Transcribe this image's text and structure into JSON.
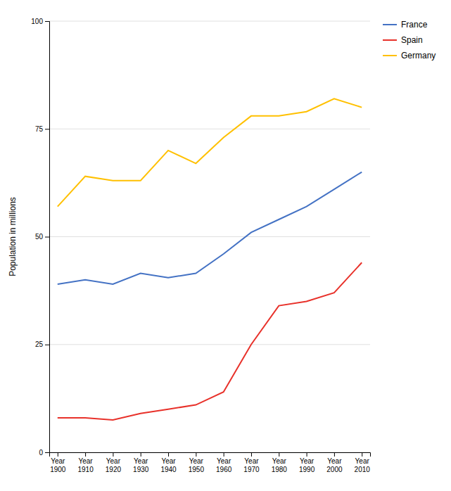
{
  "chart_data": {
    "type": "line",
    "categories": [
      "Year\n1900",
      "Year\n1910",
      "Year\n1920",
      "Year\n1930",
      "Year\n1940",
      "Year\n1950",
      "Year\n1960",
      "Year\n1970",
      "Year\n1980",
      "Year\n1990",
      "Year\n2000",
      "Year\n2010"
    ],
    "series": [
      {
        "name": "France",
        "color": "#4472C4",
        "values": [
          39,
          40,
          39,
          41.5,
          40.5,
          41.5,
          46,
          51,
          54,
          57,
          61,
          65
        ]
      },
      {
        "name": "Spain",
        "color": "#E8312A",
        "values": [
          8,
          8,
          7.5,
          9,
          10,
          11,
          14,
          25,
          34,
          35,
          37,
          44
        ]
      },
      {
        "name": "Germany",
        "color": "#FFC000",
        "values": [
          57,
          64,
          63,
          63,
          70,
          67,
          73,
          78,
          78,
          79,
          82,
          80
        ]
      }
    ],
    "ylabel": "Population in millions",
    "ylim": [
      0,
      100
    ],
    "yticks": [
      0,
      25,
      50,
      75,
      100
    ],
    "grid": true,
    "legend": "top-right"
  }
}
